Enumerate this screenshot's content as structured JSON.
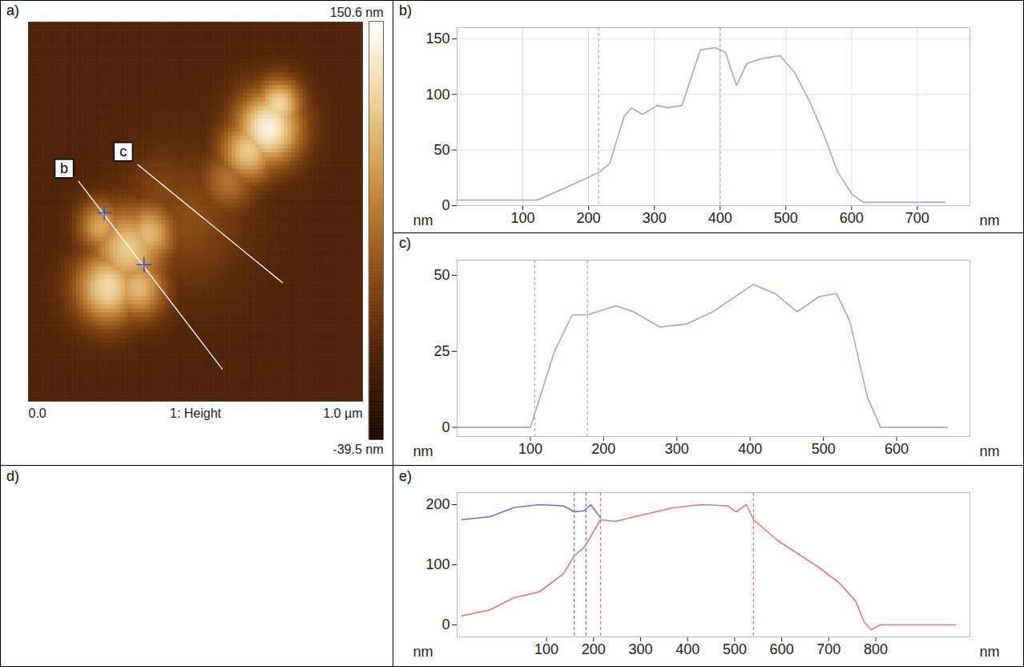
{
  "chart_data": [
    {
      "type": "image",
      "title": "a)",
      "tick_labels": "x",
      "xlim": [
        0,
        1
      ],
      "ylim": [
        0,
        1
      ],
      "xticks": [
        {
          "value": 0,
          "label": "0.0"
        },
        {
          "value": 1,
          "label": "1.0 µm"
        }
      ],
      "xlabel": "1: Height",
      "features": [
        {
          "x": 0.72,
          "y": 0.72,
          "r": 0.07,
          "height": 140
        },
        {
          "x": 0.66,
          "y": 0.66,
          "r": 0.06,
          "height": 110
        },
        {
          "x": 0.75,
          "y": 0.78,
          "r": 0.05,
          "height": 120
        },
        {
          "x": 0.6,
          "y": 0.58,
          "r": 0.06,
          "height": 60
        },
        {
          "x": 0.3,
          "y": 0.4,
          "r": 0.08,
          "height": 110
        },
        {
          "x": 0.24,
          "y": 0.3,
          "r": 0.07,
          "height": 120
        },
        {
          "x": 0.36,
          "y": 0.44,
          "r": 0.06,
          "height": 100
        },
        {
          "x": 0.22,
          "y": 0.46,
          "r": 0.05,
          "height": 90
        },
        {
          "x": 0.33,
          "y": 0.3,
          "r": 0.06,
          "height": 100
        },
        {
          "x": 0.48,
          "y": 0.48,
          "r": 0.12,
          "height": 35
        },
        {
          "x": 0.4,
          "y": 0.55,
          "r": 0.08,
          "height": 30
        }
      ],
      "colorbar": {
        "range": [
          -39.5,
          150.6
        ],
        "ticks": [
          {
            "value": 150.6,
            "label": "150.6 nm"
          },
          {
            "value": -39.5,
            "label": "-39.5 nm"
          }
        ]
      },
      "lines": [
        {
          "label": "b",
          "from": [
            0.15,
            0.58
          ],
          "to": [
            0.58,
            0.085
          ],
          "cursors": [
            [
              0.227,
              0.497
            ],
            [
              0.346,
              0.36
            ]
          ]
        },
        {
          "label": "c",
          "from": [
            0.327,
            0.624
          ],
          "to": [
            0.76,
            0.313
          ],
          "cursors": []
        }
      ]
    },
    {
      "type": "line",
      "title": "b)",
      "xlabel": "nm",
      "ylabel": "nm",
      "grid": true,
      "xlim": [
        0,
        780
      ],
      "xticks": [
        100,
        200,
        300,
        400,
        500,
        600,
        700
      ],
      "ylim": [
        0,
        160
      ],
      "yticks": [
        0,
        50,
        100,
        150
      ],
      "color": "#a9a3dc",
      "x": [
        0,
        100,
        122,
        161,
        216,
        232,
        254,
        265,
        282,
        304,
        320,
        342,
        370,
        392,
        408,
        425,
        441,
        463,
        491,
        513,
        535,
        557,
        579,
        601,
        618,
        700,
        742
      ],
      "values": [
        5,
        5,
        5,
        15,
        30,
        38,
        80,
        88,
        82,
        90,
        88,
        90,
        140,
        142,
        138,
        108,
        128,
        132,
        135,
        120,
        95,
        65,
        30,
        10,
        3,
        3,
        3
      ],
      "cursors": [
        215,
        400
      ]
    },
    {
      "type": "line",
      "title": "c)",
      "xlabel": "nm",
      "ylabel": "nm",
      "grid": false,
      "xlim": [
        0,
        700
      ],
      "xticks": [
        100,
        200,
        300,
        400,
        500,
        600
      ],
      "ylim": [
        -3,
        55
      ],
      "yticks": [
        0,
        25,
        50
      ],
      "color": "#a9a3dc",
      "x": [
        0,
        100,
        133,
        157,
        178,
        217,
        241,
        277,
        313,
        349,
        404,
        434,
        464,
        494,
        518,
        536,
        560,
        578,
        620,
        669
      ],
      "values": [
        0,
        0,
        25,
        37,
        37,
        40,
        38,
        33,
        34,
        38,
        47,
        44,
        38,
        43,
        44,
        35,
        10,
        0,
        0,
        0
      ],
      "cursors": [
        106,
        178
      ]
    },
    {
      "type": "empty",
      "title": "d)"
    },
    {
      "type": "line",
      "title": "e)",
      "xlabel": "nm",
      "ylabel": "nm",
      "grid": false,
      "xlim": [
        -90,
        1000
      ],
      "xticks": [
        100,
        200,
        300,
        400,
        500,
        600,
        700,
        800
      ],
      "ylim": [
        -20,
        220
      ],
      "yticks": [
        0,
        100,
        200
      ],
      "series": [
        {
          "color": "#6f6fd6",
          "x": [
            -80,
            -20,
            30,
            85,
            136,
            159,
            181,
            194,
            215
          ],
          "values": [
            175,
            180,
            195,
            200,
            198,
            188,
            190,
            200,
            178
          ],
          "cursors": [
            159,
            184
          ]
        },
        {
          "color": "#e07a7a",
          "x": [
            -80,
            -20,
            30,
            85,
            136,
            159,
            181,
            215,
            246,
            277,
            370,
            430,
            485,
            503,
            525,
            540,
            592,
            680,
            722,
            757,
            775,
            790,
            810,
            970
          ],
          "values": [
            15,
            25,
            45,
            55,
            85,
            115,
            130,
            175,
            172,
            178,
            195,
            200,
            198,
            188,
            200,
            175,
            140,
            95,
            70,
            40,
            5,
            -8,
            0,
            0
          ],
          "cursors": [
            215,
            540
          ]
        }
      ]
    }
  ]
}
